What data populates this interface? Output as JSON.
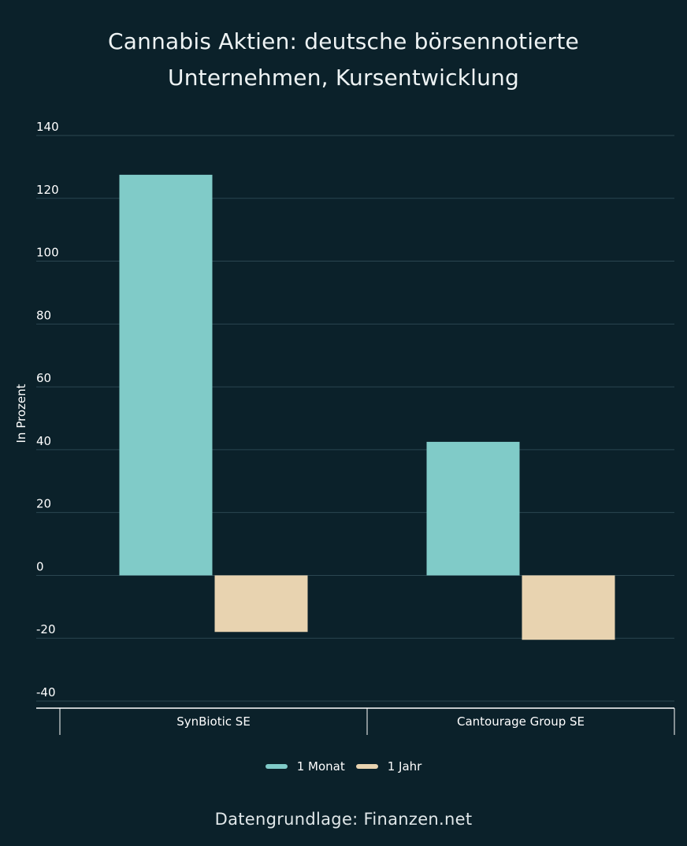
{
  "title_lines": [
    "Cannabis Aktien: deutsche börsennotierte",
    "Unternehmen, Kursentwicklung"
  ],
  "source": "Datengrundlage: Finanzen.net",
  "colors": {
    "background": "#0b212a",
    "series_1": "#80cbc8",
    "series_2": "#e8d3b0",
    "grid": "#2b4650",
    "axis": "#ffffff",
    "text": "#ffffff"
  },
  "chart_data": {
    "type": "bar",
    "title": "Cannabis Aktien: deutsche börsennotierte Unternehmen, Kursentwicklung",
    "ylabel": "In Prozent",
    "xlabel": "",
    "categories": [
      "SynBiotic SE",
      "Cantourage Group SE"
    ],
    "series": [
      {
        "name": "1 Monat",
        "values": [
          127.5,
          42.5
        ]
      },
      {
        "name": "1 Jahr",
        "values": [
          -18,
          -20.5
        ]
      }
    ],
    "ylim": [
      -40,
      140
    ],
    "yticks": [
      140,
      120,
      100,
      80,
      60,
      40,
      20,
      0,
      -20,
      -40
    ],
    "grid": true,
    "legend_position": "bottom-center"
  }
}
